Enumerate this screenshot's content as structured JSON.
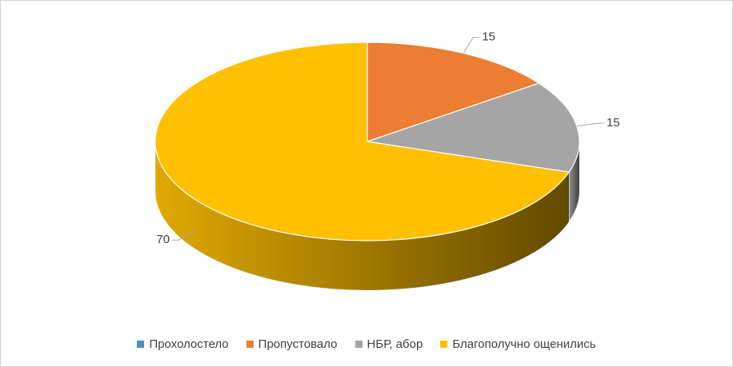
{
  "chart_data": {
    "type": "pie3d",
    "categories": [
      "Прохолостело",
      "Пропустовало",
      "НБР, абор",
      "Благополучно ощенились"
    ],
    "values": [
      0,
      15,
      15,
      70
    ],
    "colors": [
      "#4a8fc9",
      "#ed7d31",
      "#a5a5a5",
      "#ffc000"
    ],
    "value_labels": [
      null,
      "15",
      "15",
      "70"
    ],
    "legend": "bottom"
  }
}
